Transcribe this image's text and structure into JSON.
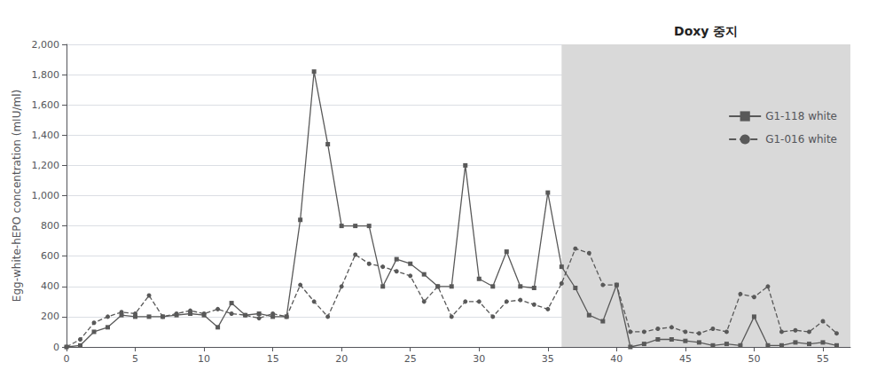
{
  "chart_data": {
    "type": "line",
    "ylabel": "Egg-white-hEPO concentration (mIU/ml)",
    "x": [
      0,
      1,
      2,
      3,
      4,
      5,
      6,
      7,
      8,
      9,
      10,
      11,
      12,
      13,
      14,
      15,
      16,
      17,
      18,
      19,
      20,
      21,
      22,
      23,
      24,
      25,
      26,
      27,
      28,
      29,
      30,
      31,
      32,
      33,
      34,
      35,
      36,
      37,
      38,
      39,
      40,
      41,
      42,
      43,
      44,
      45,
      46,
      47,
      48,
      49,
      50,
      51,
      52,
      53,
      54,
      55,
      56
    ],
    "series": [
      {
        "name": "G1-118 white",
        "color": "#595959",
        "line_style": "solid",
        "marker": "square",
        "values": [
          0,
          10,
          100,
          130,
          210,
          200,
          200,
          200,
          210,
          220,
          210,
          130,
          290,
          210,
          220,
          200,
          200,
          840,
          1820,
          1340,
          800,
          800,
          800,
          400,
          580,
          550,
          480,
          400,
          400,
          1200,
          450,
          400,
          630,
          400,
          390,
          1020,
          530,
          390,
          210,
          170,
          410,
          0,
          20,
          50,
          50,
          40,
          30,
          10,
          20,
          10,
          200,
          10,
          10,
          30,
          20,
          30,
          10
        ]
      },
      {
        "name": "G1-016 white",
        "color": "#595959",
        "line_style": "dashed",
        "marker": "circle",
        "values": [
          0,
          50,
          160,
          200,
          230,
          220,
          340,
          200,
          220,
          240,
          220,
          250,
          220,
          210,
          190,
          220,
          200,
          410,
          300,
          200,
          400,
          610,
          550,
          530,
          500,
          470,
          300,
          400,
          200,
          300,
          300,
          200,
          300,
          310,
          280,
          250,
          420,
          650,
          620,
          410,
          410,
          100,
          100,
          120,
          130,
          100,
          90,
          120,
          100,
          350,
          330,
          400,
          100,
          110,
          100,
          170,
          90
        ]
      }
    ],
    "shaded_region": {
      "x": [
        36,
        57
      ],
      "color": "#d9d9d9",
      "label": "Doxy 중지"
    },
    "xlim": [
      0,
      57
    ],
    "ylim": [
      0,
      2000
    ],
    "xticks": [
      0,
      5,
      10,
      15,
      20,
      25,
      30,
      35,
      40,
      45,
      50,
      55
    ],
    "yticks": [
      0,
      200,
      400,
      600,
      800,
      1000,
      1200,
      1400,
      1600,
      1800,
      2000
    ],
    "grid": "y",
    "legend": "right"
  }
}
